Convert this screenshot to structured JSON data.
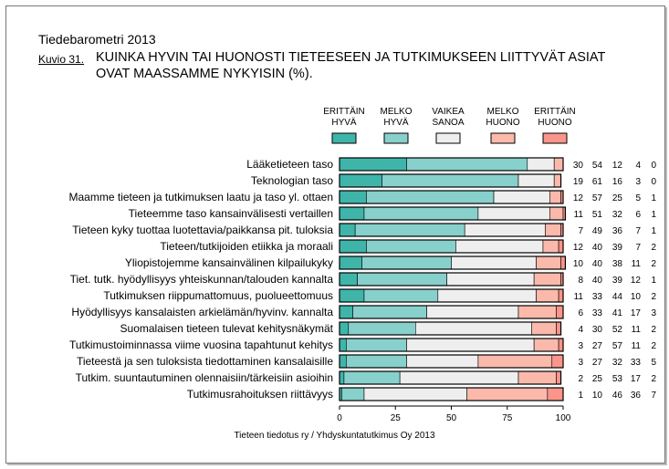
{
  "header": {
    "barometer": "Tiedebarometri 2013",
    "figure_no": "Kuvio 31.",
    "title_line1": "KUINKA HYVIN TAI HUONOSTI TIETEESEEN JA TUTKIMUKSEEN LIITTYVÄT ASIAT",
    "title_line2": "OVAT MAASSAMME NYKYISIN (%)."
  },
  "source": "Tieteen tiedotus ry / Yhdyskuntatutkimus Oy 2013",
  "chart_data": {
    "type": "bar",
    "stacked": true,
    "orientation": "horizontal",
    "xlim": [
      0,
      100
    ],
    "xticks": [
      0,
      25,
      50,
      75,
      100
    ],
    "series": [
      {
        "name": "ERITTÄIN HYVÄ",
        "color": "#3fb5aa"
      },
      {
        "name": "MELKO HYVÄ",
        "color": "#88d0cc"
      },
      {
        "name": "VAIKEA SANOA",
        "color": "#eeeeee"
      },
      {
        "name": "MELKO HUONO",
        "color": "#fbb9ac"
      },
      {
        "name": "ERITTÄIN HUONO",
        "color": "#f9958a"
      }
    ],
    "legend_lines": [
      [
        "ERITTÄIN",
        "HYVÄ"
      ],
      [
        "MELKO",
        "HYVÄ"
      ],
      [
        "VAIKEA",
        "SANOA"
      ],
      [
        "MELKO",
        "HUONO"
      ],
      [
        "ERITTÄIN",
        "HUONO"
      ]
    ],
    "categories": [
      "Lääketieteen taso",
      "Teknologian taso",
      "Maamme tieteen ja tutkimuksen laatu ja taso yl. ottaen",
      "Tieteemme taso kansainvälisesti vertaillen",
      "Tieteen kyky tuottaa luotettavia/paikkansa pit. tuloksia",
      "Tieteen/tutkijoiden etiikka ja moraali",
      "Yliopistojemme kansainvälinen kilpailukyky",
      "Tiet. tutk. hyödyllisyys yhteiskunnan/talouden kannalta",
      "Tutkimuksen riippumattomuus, puolueettomuus",
      "Hyödyllisyys kansalaisten arkielämän/hyvinv. kannalta",
      "Suomalaisen tieteen tulevat kehitysnäkymät",
      "Tutkimustoiminnassa viime vuosina tapahtunut kehitys",
      "Tieteestä ja sen tuloksista tiedottaminen kansalaisille",
      "Tutkim. suuntautuminen olennaisiin/tärkeisiin asioihin",
      "Tutkimusrahoituksen riittävyys"
    ],
    "values": [
      [
        30,
        54,
        12,
        4,
        0
      ],
      [
        19,
        61,
        16,
        3,
        0
      ],
      [
        12,
        57,
        25,
        5,
        1
      ],
      [
        11,
        51,
        32,
        6,
        1
      ],
      [
        7,
        49,
        36,
        7,
        1
      ],
      [
        12,
        40,
        39,
        7,
        2
      ],
      [
        10,
        40,
        38,
        11,
        2
      ],
      [
        8,
        40,
        39,
        12,
        1
      ],
      [
        11,
        33,
        44,
        10,
        2
      ],
      [
        6,
        33,
        41,
        17,
        3
      ],
      [
        4,
        30,
        52,
        11,
        2
      ],
      [
        3,
        27,
        57,
        11,
        2
      ],
      [
        3,
        27,
        32,
        33,
        5
      ],
      [
        2,
        25,
        53,
        17,
        2
      ],
      [
        1,
        10,
        46,
        36,
        7
      ]
    ]
  }
}
